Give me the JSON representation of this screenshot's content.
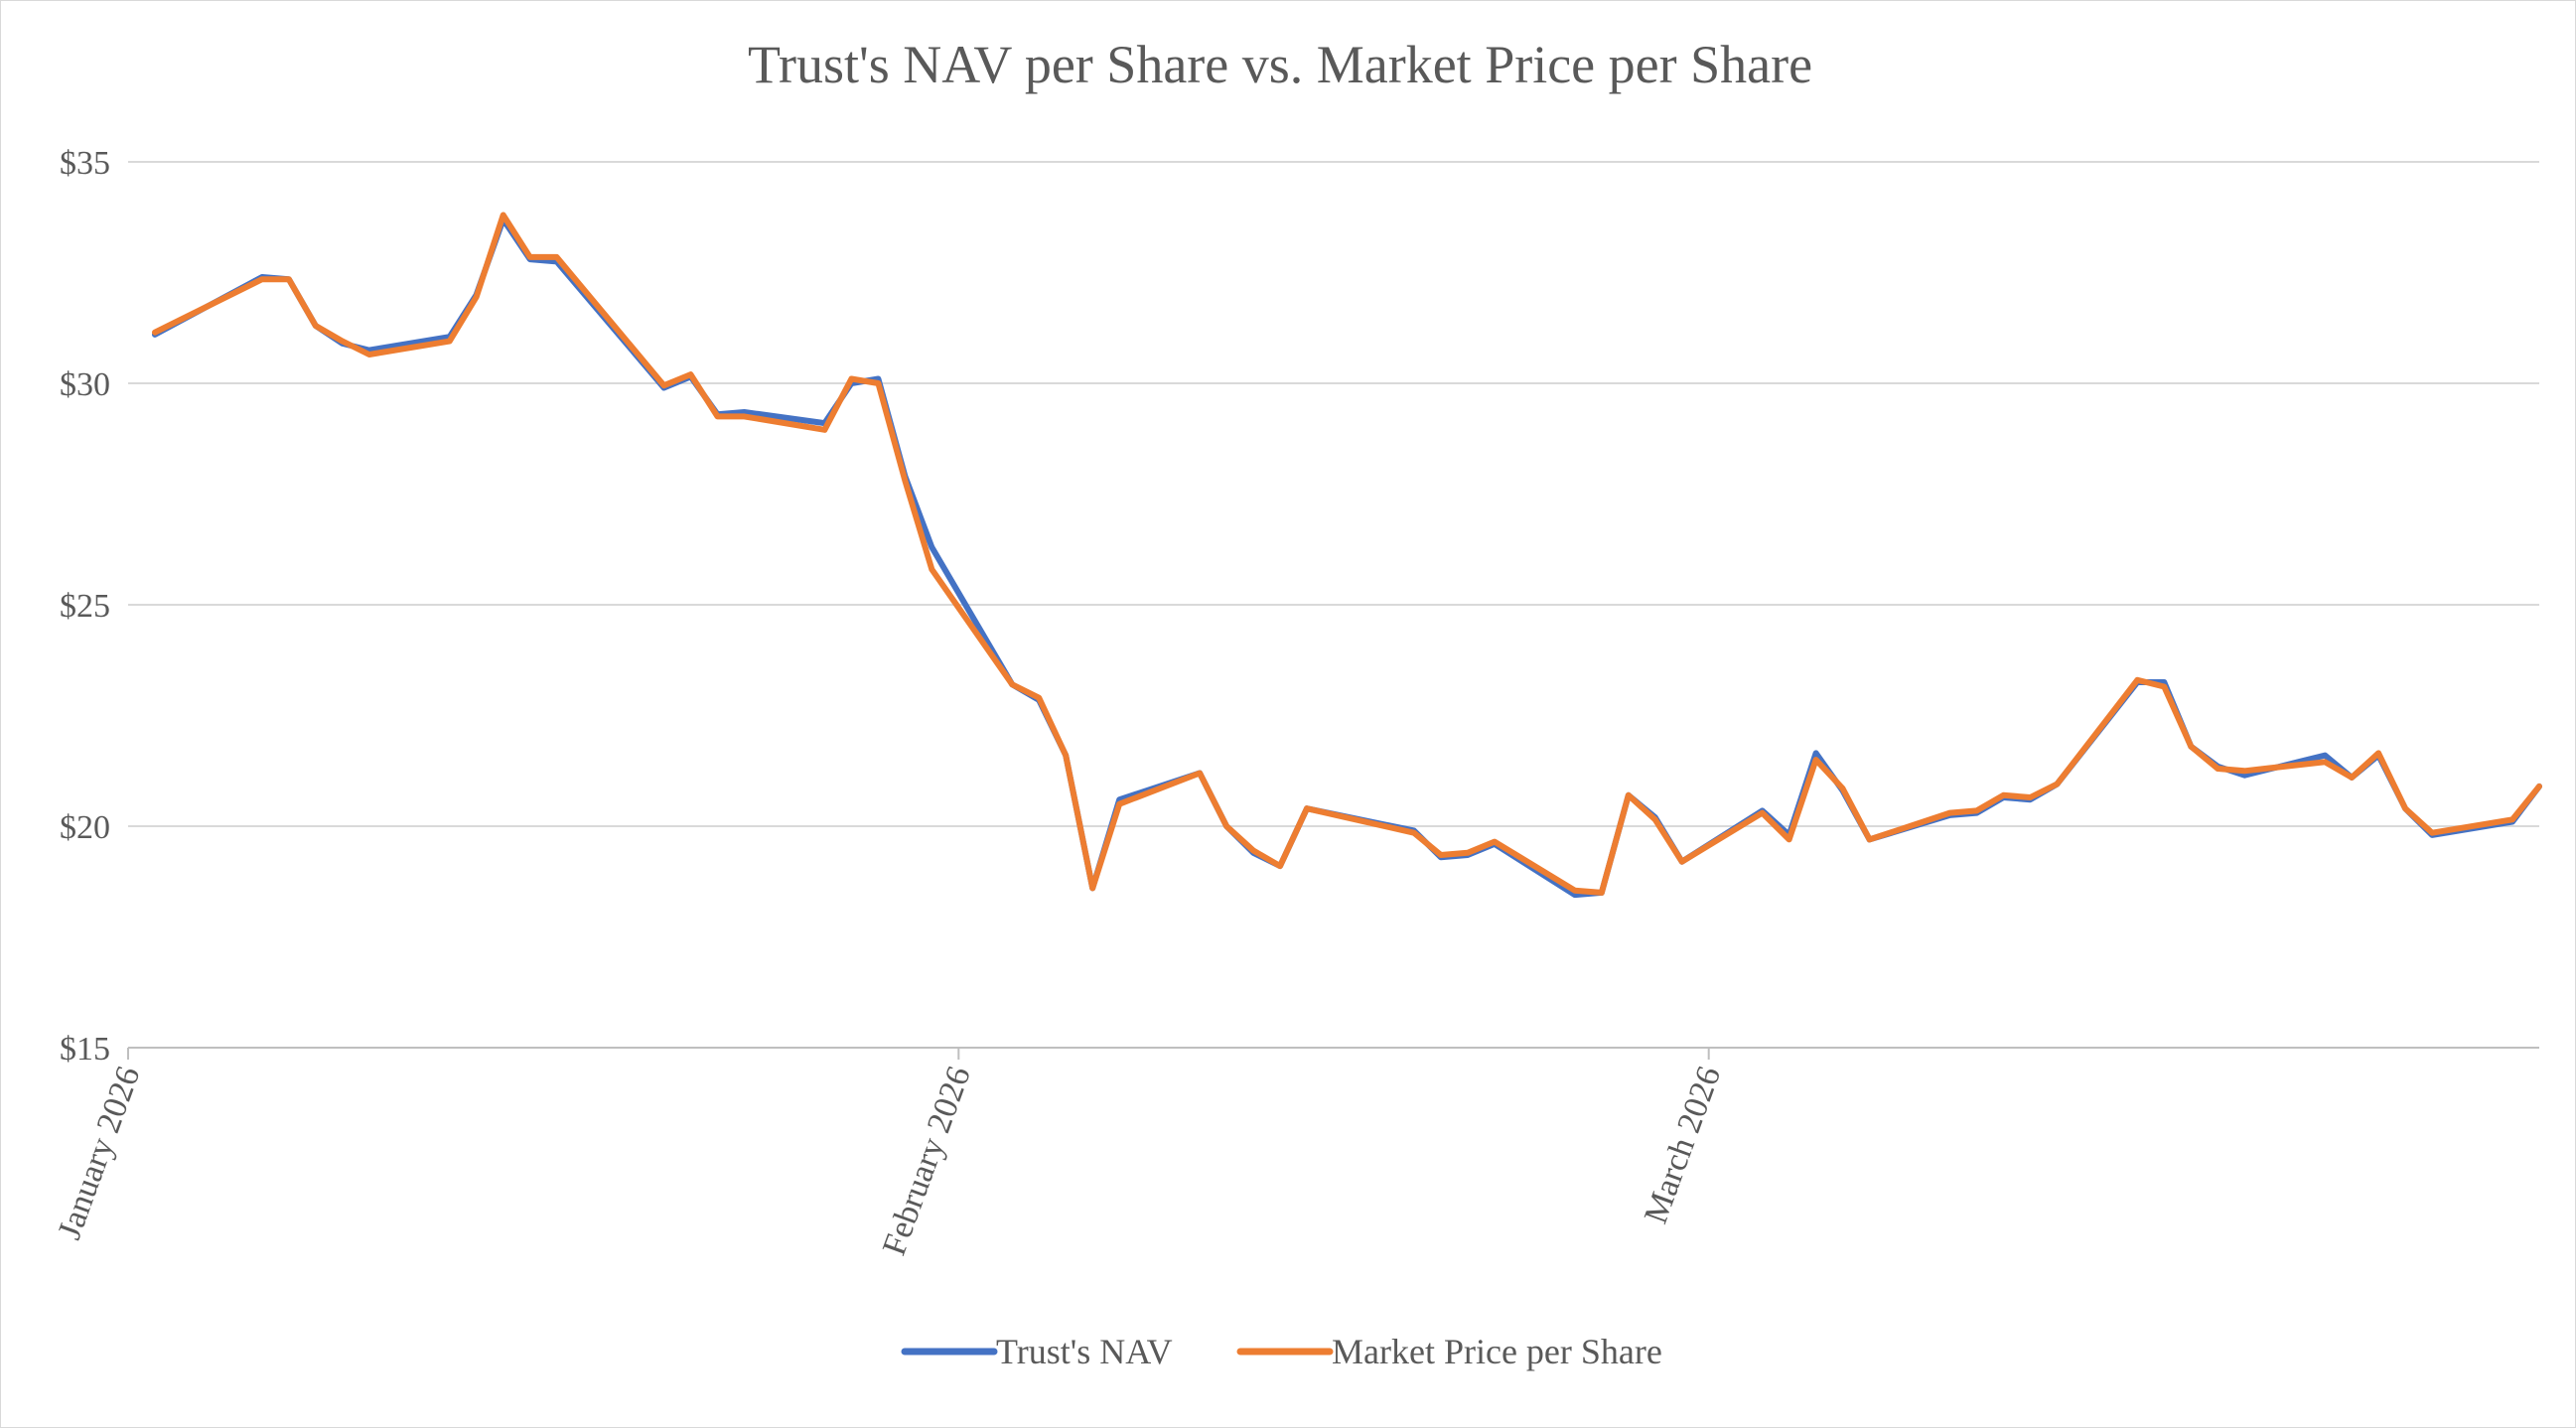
{
  "chart_data": {
    "type": "line",
    "title": "Trust's NAV per Share vs. Market Price per Share",
    "xlabel": "",
    "ylabel": "",
    "ylim": [
      15,
      35
    ],
    "y_ticks": [
      15,
      20,
      25,
      30,
      35
    ],
    "y_tick_labels": [
      "$15",
      "$20",
      "$25",
      "$30",
      "$35"
    ],
    "x_range": [
      "2025-12-31",
      "2026-03-31"
    ],
    "x_ticks": [
      {
        "date": "2025-12-31",
        "label": "January 2026"
      },
      {
        "date": "2026-01-31",
        "label": "February 2026"
      },
      {
        "date": "2026-02-28",
        "label": "March 2026"
      }
    ],
    "grid": true,
    "legend": "bottom",
    "colors": {
      "nav": "#4472c4",
      "price": "#ed7d31",
      "text": "#595959",
      "grid": "#d9d9d9"
    },
    "x": [
      "2026-01-01",
      "2026-01-05",
      "2026-01-06",
      "2026-01-07",
      "2026-01-08",
      "2026-01-09",
      "2026-01-12",
      "2026-01-13",
      "2026-01-14",
      "2026-01-15",
      "2026-01-16",
      "2026-01-20",
      "2026-01-21",
      "2026-01-22",
      "2026-01-23",
      "2026-01-26",
      "2026-01-27",
      "2026-01-28",
      "2026-01-29",
      "2026-01-30",
      "2026-02-02",
      "2026-02-03",
      "2026-02-04",
      "2026-02-05",
      "2026-02-06",
      "2026-02-09",
      "2026-02-10",
      "2026-02-11",
      "2026-02-12",
      "2026-02-13",
      "2026-02-17",
      "2026-02-18",
      "2026-02-19",
      "2026-02-20",
      "2026-02-23",
      "2026-02-24",
      "2026-02-25",
      "2026-02-26",
      "2026-02-27",
      "2026-03-02",
      "2026-03-03",
      "2026-03-04",
      "2026-03-05",
      "2026-03-06",
      "2026-03-09",
      "2026-03-10",
      "2026-03-11",
      "2026-03-12",
      "2026-03-13",
      "2026-03-16",
      "2026-03-17",
      "2026-03-18",
      "2026-03-19",
      "2026-03-20",
      "2026-03-23",
      "2026-03-24",
      "2026-03-25",
      "2026-03-26",
      "2026-03-27",
      "2026-03-30",
      "2026-03-31"
    ],
    "series": [
      {
        "name": "Trust's NAV",
        "color": "#4472c4",
        "values": [
          31.1,
          32.4,
          32.35,
          31.3,
          30.9,
          30.75,
          31.05,
          32.0,
          33.7,
          32.8,
          32.75,
          29.9,
          30.15,
          29.3,
          29.35,
          29.1,
          30.0,
          30.1,
          27.9,
          26.3,
          23.2,
          22.85,
          21.6,
          18.6,
          20.6,
          21.2,
          20.0,
          19.4,
          19.1,
          20.4,
          19.9,
          19.3,
          19.35,
          19.6,
          18.45,
          18.5,
          20.7,
          20.2,
          19.2,
          20.35,
          19.8,
          21.65,
          20.8,
          19.7,
          20.25,
          20.3,
          20.65,
          20.6,
          20.95,
          23.25,
          23.25,
          21.8,
          21.35,
          21.15,
          21.6,
          21.1,
          21.6,
          20.4,
          19.8,
          20.1,
          20.9
        ]
      },
      {
        "name": "Market Price per Share",
        "color": "#ed7d31",
        "values": [
          31.15,
          32.35,
          32.35,
          31.3,
          30.95,
          30.65,
          30.95,
          31.95,
          33.8,
          32.85,
          32.85,
          29.95,
          30.2,
          29.25,
          29.25,
          28.95,
          30.1,
          30.0,
          27.8,
          25.8,
          23.2,
          22.9,
          21.6,
          18.6,
          20.5,
          21.2,
          20.0,
          19.45,
          19.1,
          20.4,
          19.85,
          19.35,
          19.4,
          19.65,
          18.55,
          18.5,
          20.7,
          20.15,
          19.2,
          20.3,
          19.7,
          21.5,
          20.85,
          19.7,
          20.3,
          20.35,
          20.7,
          20.65,
          20.95,
          23.3,
          23.15,
          21.8,
          21.3,
          21.25,
          21.45,
          21.1,
          21.65,
          20.4,
          19.85,
          20.15,
          20.9
        ]
      }
    ]
  }
}
